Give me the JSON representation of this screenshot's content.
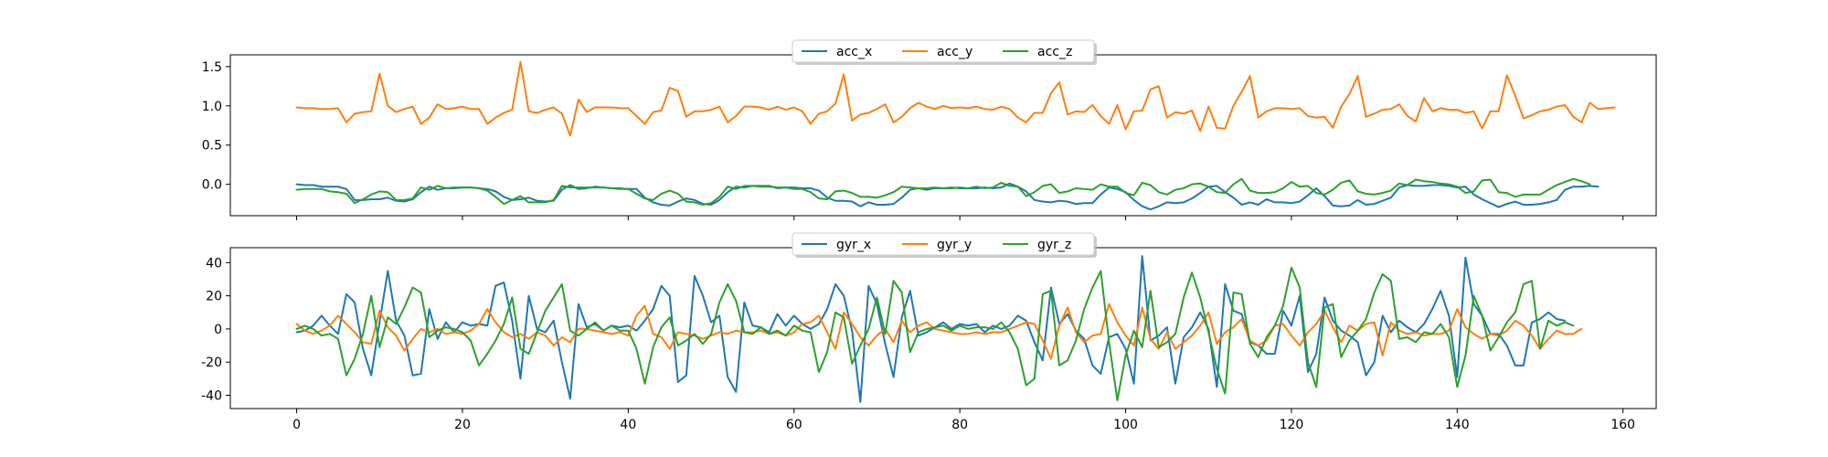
{
  "chart_data": [
    {
      "type": "line",
      "xlim": [
        -8,
        164
      ],
      "ylim": [
        -0.4,
        1.65
      ],
      "xticks": [
        0,
        20,
        40,
        60,
        80,
        100,
        120,
        140,
        160
      ],
      "yticks": [
        0.0,
        0.5,
        1.0,
        1.5
      ],
      "show_xtick_labels": false,
      "grid": false,
      "legend_position": "top-center",
      "series": [
        {
          "name": "acc_x",
          "color": "#1f77b4",
          "x_start": 0,
          "x_step": 1,
          "values": [
            0.0,
            -0.01,
            -0.01,
            -0.03,
            -0.03,
            -0.03,
            -0.06,
            -0.2,
            -0.2,
            -0.19,
            -0.19,
            -0.17,
            -0.21,
            -0.22,
            -0.19,
            -0.1,
            -0.03,
            -0.07,
            -0.05,
            -0.05,
            -0.04,
            -0.04,
            -0.05,
            -0.06,
            -0.09,
            -0.16,
            -0.2,
            -0.19,
            -0.17,
            -0.21,
            -0.22,
            -0.21,
            -0.07,
            -0.01,
            -0.06,
            -0.05,
            -0.03,
            -0.04,
            -0.05,
            -0.05,
            -0.06,
            -0.06,
            -0.17,
            -0.23,
            -0.26,
            -0.27,
            -0.22,
            -0.18,
            -0.2,
            -0.25,
            -0.26,
            -0.2,
            -0.1,
            -0.03,
            -0.04,
            -0.02,
            -0.02,
            -0.02,
            -0.05,
            -0.04,
            -0.04,
            -0.05,
            -0.05,
            -0.08,
            -0.17,
            -0.21,
            -0.21,
            -0.22,
            -0.28,
            -0.23,
            -0.26,
            -0.26,
            -0.25,
            -0.17,
            -0.07,
            -0.05,
            -0.07,
            -0.05,
            -0.05,
            -0.04,
            -0.05,
            -0.05,
            -0.05,
            -0.04,
            -0.05,
            -0.04,
            0.01,
            -0.03,
            -0.09,
            -0.2,
            -0.22,
            -0.23,
            -0.21,
            -0.22,
            -0.25,
            -0.24,
            -0.24,
            -0.13,
            -0.04,
            -0.06,
            -0.1,
            -0.2,
            -0.28,
            -0.32,
            -0.28,
            -0.23,
            -0.24,
            -0.23,
            -0.18,
            -0.11,
            -0.03,
            -0.02,
            -0.1,
            -0.17,
            -0.26,
            -0.23,
            -0.26,
            -0.19,
            -0.23,
            -0.23,
            -0.24,
            -0.22,
            -0.14,
            -0.05,
            -0.15,
            -0.27,
            -0.28,
            -0.27,
            -0.2,
            -0.26,
            -0.25,
            -0.21,
            -0.17,
            -0.04,
            -0.01,
            -0.02,
            -0.02,
            -0.01,
            -0.01,
            -0.02,
            -0.04,
            -0.03,
            -0.13,
            -0.19,
            -0.24,
            -0.29,
            -0.25,
            -0.22,
            -0.26,
            -0.26,
            -0.25,
            -0.23,
            -0.2,
            -0.07,
            -0.03,
            -0.03,
            -0.02,
            -0.03
          ]
        },
        {
          "name": "acc_y",
          "color": "#ff7f0e",
          "x_start": 0,
          "x_step": 1,
          "values": [
            0.98,
            0.97,
            0.97,
            0.96,
            0.96,
            0.97,
            0.79,
            0.9,
            0.92,
            0.93,
            1.41,
            1.0,
            0.92,
            0.96,
            0.99,
            0.77,
            0.85,
            1.02,
            0.96,
            0.97,
            0.99,
            0.96,
            0.96,
            0.77,
            0.85,
            0.91,
            0.95,
            1.56,
            0.93,
            0.91,
            0.95,
            0.98,
            0.9,
            0.62,
            1.08,
            0.92,
            0.98,
            0.98,
            0.98,
            0.97,
            0.97,
            0.87,
            0.77,
            0.92,
            0.94,
            1.23,
            1.19,
            0.86,
            0.93,
            0.93,
            0.95,
            0.99,
            0.79,
            0.87,
            0.99,
            0.99,
            0.98,
            0.95,
            0.99,
            0.95,
            0.98,
            0.93,
            0.77,
            0.9,
            0.93,
            1.03,
            1.4,
            0.81,
            0.89,
            0.91,
            0.96,
            1.02,
            0.79,
            0.86,
            0.97,
            1.04,
            0.99,
            0.96,
            1.0,
            0.97,
            0.98,
            0.97,
            0.99,
            0.96,
            0.95,
            0.99,
            0.96,
            0.85,
            0.79,
            0.91,
            0.91,
            1.16,
            1.3,
            0.89,
            0.93,
            0.92,
            1.01,
            0.87,
            0.77,
            1.01,
            0.7,
            0.93,
            0.94,
            1.21,
            1.25,
            0.85,
            0.92,
            0.9,
            0.94,
            0.68,
            0.99,
            0.72,
            0.71,
            1.0,
            1.18,
            1.38,
            0.85,
            0.93,
            0.97,
            0.97,
            0.96,
            0.97,
            0.87,
            0.85,
            0.86,
            0.72,
            0.99,
            1.15,
            1.38,
            0.86,
            0.9,
            0.95,
            0.96,
            1.02,
            0.87,
            0.8,
            1.1,
            0.93,
            0.97,
            0.95,
            0.95,
            0.91,
            0.93,
            0.71,
            0.93,
            0.93,
            1.39,
            1.13,
            0.84,
            0.88,
            0.93,
            0.95,
            0.99,
            1.01,
            0.86,
            0.79,
            1.04,
            0.96,
            0.97,
            0.98
          ]
        },
        {
          "name": "acc_z",
          "color": "#2ca02c",
          "x_start": 0,
          "x_step": 1,
          "values": [
            -0.07,
            -0.06,
            -0.06,
            -0.06,
            -0.09,
            -0.1,
            -0.12,
            -0.24,
            -0.19,
            -0.13,
            -0.09,
            -0.1,
            -0.2,
            -0.2,
            -0.18,
            -0.04,
            -0.07,
            -0.02,
            -0.05,
            -0.04,
            -0.04,
            -0.04,
            -0.05,
            -0.08,
            -0.16,
            -0.25,
            -0.2,
            -0.15,
            -0.23,
            -0.23,
            -0.23,
            -0.2,
            -0.02,
            -0.04,
            -0.04,
            -0.04,
            -0.04,
            -0.04,
            -0.05,
            -0.06,
            -0.06,
            -0.12,
            -0.18,
            -0.2,
            -0.12,
            -0.08,
            -0.12,
            -0.22,
            -0.23,
            -0.26,
            -0.24,
            -0.16,
            -0.03,
            -0.06,
            -0.02,
            -0.02,
            -0.03,
            -0.03,
            -0.04,
            -0.04,
            -0.06,
            -0.06,
            -0.1,
            -0.18,
            -0.19,
            -0.09,
            -0.08,
            -0.11,
            -0.16,
            -0.16,
            -0.17,
            -0.14,
            -0.1,
            -0.03,
            -0.04,
            -0.05,
            -0.05,
            -0.04,
            -0.05,
            -0.05,
            -0.04,
            -0.05,
            -0.03,
            -0.05,
            -0.04,
            0.02,
            -0.02,
            -0.03,
            -0.15,
            -0.1,
            -0.02,
            0.0,
            -0.11,
            -0.09,
            -0.05,
            -0.06,
            -0.07,
            0.0,
            -0.03,
            -0.03,
            -0.11,
            -0.14,
            0.02,
            -0.01,
            -0.1,
            -0.13,
            -0.07,
            -0.05,
            0.0,
            0.01,
            -0.03,
            -0.1,
            -0.11,
            0.0,
            0.07,
            -0.08,
            -0.11,
            -0.11,
            -0.1,
            -0.05,
            0.03,
            -0.03,
            -0.02,
            -0.11,
            -0.13,
            -0.07,
            0.02,
            0.05,
            -0.09,
            -0.12,
            -0.13,
            -0.11,
            -0.08,
            0.01,
            -0.01,
            0.06,
            0.04,
            0.03,
            0.01,
            0.0,
            -0.03,
            -0.11,
            -0.09,
            0.05,
            0.06,
            -0.1,
            -0.11,
            -0.16,
            -0.13,
            -0.13,
            -0.13,
            -0.07,
            -0.01,
            0.03,
            0.07,
            0.04,
            0.0
          ]
        }
      ]
    },
    {
      "type": "line",
      "xlim": [
        -8,
        164
      ],
      "ylim": [
        -48,
        49
      ],
      "xticks": [
        0,
        20,
        40,
        60,
        80,
        100,
        120,
        140,
        160
      ],
      "yticks": [
        -40,
        -20,
        0,
        20,
        40
      ],
      "show_xtick_labels": true,
      "grid": false,
      "legend_position": "top-center",
      "series": [
        {
          "name": "gyr_x",
          "color": "#1f77b4",
          "x_start": 0,
          "x_step": 1,
          "values": [
            -2,
            -1,
            2,
            8,
            2,
            -3,
            21,
            16,
            -12,
            -28,
            4,
            35,
            5,
            -4,
            -28,
            -27,
            12,
            -6,
            4,
            -2,
            4,
            2,
            3,
            2,
            26,
            28,
            5,
            -30,
            20,
            0,
            -2,
            5,
            -20,
            -42,
            15,
            1,
            3,
            -1,
            2,
            1,
            2,
            -1,
            5,
            12,
            26,
            20,
            -32,
            -28,
            32,
            20,
            4,
            8,
            -29,
            -38,
            16,
            2,
            1,
            -2,
            9,
            2,
            8,
            3,
            0,
            3,
            12,
            27,
            20,
            -1,
            -44,
            26,
            15,
            -9,
            -29,
            7,
            23,
            -4,
            -2,
            1,
            4,
            0,
            3,
            2,
            3,
            -2,
            2,
            0,
            2,
            8,
            5,
            -8,
            -19,
            25,
            3,
            9,
            -1,
            -6,
            -22,
            -27,
            -5,
            -3,
            -12,
            -33,
            44,
            -7,
            -4,
            1,
            -33,
            -5,
            1,
            10,
            0,
            -35,
            27,
            11,
            9,
            -8,
            -10,
            -15,
            -15,
            11,
            2,
            20,
            -26,
            -15,
            19,
            5,
            -1,
            -4,
            -8,
            -28,
            -20,
            8,
            -2,
            5,
            1,
            -2,
            3,
            12,
            23,
            8,
            -29,
            43,
            15,
            8,
            -3,
            -3,
            -10,
            -22,
            -22,
            4,
            6,
            10,
            6,
            5
          ]
        },
        {
          "name": "gyr_y",
          "color": "#ff7f0e",
          "x_start": 0,
          "x_step": 1,
          "values": [
            3,
            -1,
            -3,
            -1,
            2,
            8,
            3,
            -2,
            -8,
            -9,
            11,
            1,
            -4,
            -13,
            -6,
            0,
            -2,
            0,
            -3,
            -2,
            -3,
            -1,
            3,
            12,
            4,
            -2,
            -5,
            -3,
            -6,
            -2,
            -4,
            -10,
            -5,
            -8,
            0,
            0,
            -1,
            -2,
            -3,
            -2,
            -4,
            8,
            14,
            -3,
            -5,
            -12,
            -2,
            -3,
            -4,
            -6,
            -4,
            -2,
            -3,
            -1,
            -2,
            -2,
            -1,
            -3,
            -2,
            -4,
            -2,
            3,
            4,
            8,
            -2,
            -12,
            10,
            3,
            -5,
            -10,
            -4,
            0,
            -8,
            5,
            -2,
            2,
            4,
            0,
            -1,
            -2,
            -3,
            -3,
            -2,
            -3,
            -2,
            -2,
            0,
            2,
            4,
            3,
            -7,
            -18,
            2,
            13,
            -2,
            -8,
            -4,
            -3,
            15,
            4,
            -4,
            -10,
            13,
            -6,
            -12,
            -2,
            -12,
            -8,
            -4,
            2,
            10,
            -9,
            -2,
            1,
            6,
            -7,
            -10,
            -7,
            2,
            3,
            -4,
            -10,
            -2,
            3,
            11,
            1,
            -8,
            2,
            -1,
            3,
            4,
            -16,
            4,
            -1,
            -3,
            -2,
            -4,
            -3,
            -3,
            -1,
            12,
            1,
            -3,
            -6,
            -3,
            -4,
            -1,
            5,
            2,
            -4,
            -12,
            -6,
            -1,
            -3,
            -3,
            0
          ]
        },
        {
          "name": "gyr_z",
          "color": "#2ca02c",
          "x_start": 0,
          "x_step": 1,
          "values": [
            0,
            2,
            0,
            -4,
            -3,
            -6,
            -28,
            -18,
            -3,
            20,
            -11,
            7,
            3,
            13,
            25,
            22,
            -5,
            -1,
            1,
            0,
            -2,
            -7,
            -22,
            -15,
            -7,
            3,
            19,
            -12,
            -15,
            -2,
            11,
            19,
            27,
            -1,
            -4,
            0,
            4,
            -1,
            2,
            -1,
            -1,
            -12,
            -33,
            -11,
            1,
            7,
            -10,
            -7,
            -3,
            -9,
            -3,
            16,
            27,
            17,
            -2,
            -3,
            1,
            -3,
            -1,
            -4,
            2,
            -1,
            -2,
            -26,
            -14,
            10,
            7,
            -21,
            -10,
            0,
            19,
            -3,
            29,
            22,
            -14,
            -2,
            0,
            1,
            2,
            -1,
            2,
            0,
            1,
            1,
            0,
            4,
            -2,
            -12,
            -34,
            -30,
            21,
            23,
            -22,
            -19,
            -7,
            12,
            25,
            35,
            -8,
            -43,
            -16,
            -1,
            -11,
            23,
            -11,
            -8,
            -3,
            19,
            34,
            19,
            -2,
            -24,
            -39,
            22,
            21,
            -9,
            -17,
            -5,
            2,
            14,
            37,
            25,
            -20,
            -35,
            13,
            15,
            -17,
            -7,
            -1,
            6,
            22,
            33,
            29,
            -6,
            -5,
            -8,
            -2,
            -3,
            3,
            -5,
            -35,
            -16,
            20,
            8,
            -13,
            -5,
            4,
            10,
            27,
            29,
            -12,
            5,
            2,
            4,
            2
          ]
        }
      ]
    }
  ]
}
